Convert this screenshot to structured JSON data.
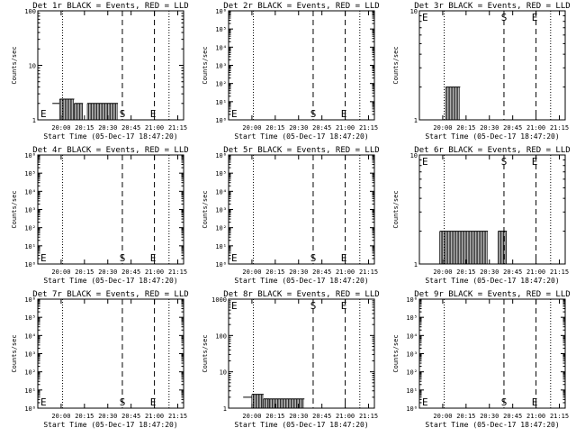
{
  "figure": {
    "background": "#ffffff",
    "ink": "#000000"
  },
  "chart_data": [
    {
      "type": "line",
      "title": "Det 1r BLACK = Events, RED = LLD",
      "xlabel": "Start Time (05-Dec-17 18:47:20)",
      "ylabel": "Counts/sec",
      "x_ticks": [
        "20:00",
        "20:15",
        "20:30",
        "20:45",
        "21:00",
        "21:15"
      ],
      "y_scale": "log",
      "ylim": [
        1,
        100
      ],
      "y_tick_values": [
        1,
        10,
        100
      ],
      "y_ticks": [
        "1",
        "10",
        "100"
      ],
      "markers": [
        {
          "label": "E",
          "position": "left"
        },
        {
          "label": "S",
          "position": "mid"
        },
        {
          "label": "E",
          "position": "right"
        }
      ],
      "series": [
        {
          "color": "#000000",
          "segments": [
            {
              "x0": 0.1,
              "x1": 0.15,
              "y": 2
            },
            {
              "x0": 0.15,
              "x1": 0.25,
              "y": 2.4,
              "dense": true
            },
            {
              "x0": 0.25,
              "x1": 0.31,
              "y": 2,
              "dense": true
            },
            {
              "x0": 0.31,
              "x1": 0.34,
              "y": 1
            },
            {
              "x0": 0.34,
              "x1": 0.55,
              "y": 2,
              "dense": true
            }
          ]
        }
      ]
    },
    {
      "type": "line",
      "title": "Det 2r BLACK = Events, RED = LLD",
      "xlabel": "Start Time (05-Dec-17 18:47:20)",
      "ylabel": "Counts/sec",
      "x_ticks": [
        "20:00",
        "20:15",
        "20:30",
        "20:45",
        "21:00",
        "21:15"
      ],
      "y_scale": "log",
      "ylim": [
        1,
        1000000
      ],
      "y_tick_values": [
        1,
        10,
        100,
        1000,
        10000,
        100000,
        1000000
      ],
      "y_ticks": [
        "10⁰",
        "10¹",
        "10²",
        "10³",
        "10⁴",
        "10⁵",
        "10⁶"
      ],
      "markers": [
        {
          "label": "E",
          "position": "left"
        },
        {
          "label": "S",
          "position": "mid"
        },
        {
          "label": "E",
          "position": "right"
        }
      ],
      "series": []
    },
    {
      "type": "line",
      "title": "Det 3r BLACK = Events, RED = LLD",
      "xlabel": "Start Time (05-Dec-17 18:47:20)",
      "ylabel": "Counts/sec",
      "x_ticks": [
        "20:00",
        "20:15",
        "20:30",
        "20:45",
        "21:00",
        "21:15"
      ],
      "y_scale": "log",
      "ylim": [
        1,
        10
      ],
      "y_tick_values": [
        1,
        10
      ],
      "y_ticks": [
        "1",
        "10"
      ],
      "markers": [
        {
          "label": "E",
          "position": "top-left"
        },
        {
          "label": "S",
          "position": "top-mid"
        },
        {
          "label": "E",
          "position": "top-right"
        }
      ],
      "series": [
        {
          "color": "#000000",
          "segments": [
            {
              "x0": 0.18,
              "x1": 0.28,
              "y": 2,
              "dense": true
            }
          ]
        }
      ]
    },
    {
      "type": "line",
      "title": "Det 4r BLACK = Events, RED = LLD",
      "xlabel": "Start Time (05-Dec-17 18:47:20)",
      "ylabel": "Counts/sec",
      "x_ticks": [
        "20:00",
        "20:15",
        "20:30",
        "20:45",
        "21:00",
        "21:15"
      ],
      "y_scale": "log",
      "ylim": [
        1,
        1000000
      ],
      "y_tick_values": [
        1,
        10,
        100,
        1000,
        10000,
        100000,
        1000000
      ],
      "y_ticks": [
        "10⁰",
        "10¹",
        "10²",
        "10³",
        "10⁴",
        "10⁵",
        "10⁶"
      ],
      "markers": [
        {
          "label": "E",
          "position": "left"
        },
        {
          "label": "S",
          "position": "mid"
        },
        {
          "label": "E",
          "position": "right"
        }
      ],
      "series": []
    },
    {
      "type": "line",
      "title": "Det 5r BLACK = Events, RED = LLD",
      "xlabel": "Start Time (05-Dec-17 18:47:20)",
      "ylabel": "Counts/sec",
      "x_ticks": [
        "20:00",
        "20:15",
        "20:30",
        "20:45",
        "21:00",
        "21:15"
      ],
      "y_scale": "log",
      "ylim": [
        1,
        1000000
      ],
      "y_tick_values": [
        1,
        10,
        100,
        1000,
        10000,
        100000,
        1000000
      ],
      "y_ticks": [
        "10⁰",
        "10¹",
        "10²",
        "10³",
        "10⁴",
        "10⁵",
        "10⁶"
      ],
      "markers": [
        {
          "label": "E",
          "position": "left"
        },
        {
          "label": "S",
          "position": "mid"
        },
        {
          "label": "E",
          "position": "right"
        }
      ],
      "series": []
    },
    {
      "type": "line",
      "title": "Det 6r BLACK = Events, RED = LLD",
      "xlabel": "Start Time (05-Dec-17 18:47:20)",
      "ylabel": "Counts/sec",
      "x_ticks": [
        "20:00",
        "20:15",
        "20:30",
        "20:45",
        "21:00",
        "21:15"
      ],
      "y_scale": "log",
      "ylim": [
        1,
        10
      ],
      "y_tick_values": [
        1,
        10
      ],
      "y_ticks": [
        "1",
        "10"
      ],
      "markers": [
        {
          "label": "E",
          "position": "top-left"
        },
        {
          "label": "S",
          "position": "top-mid"
        },
        {
          "label": "E",
          "position": "top-right"
        }
      ],
      "series": [
        {
          "color": "#000000",
          "segments": [
            {
              "x0": 0.14,
              "x1": 0.47,
              "y": 2,
              "dense": true
            },
            {
              "x0": 0.47,
              "x1": 0.54,
              "y": 1
            },
            {
              "x0": 0.54,
              "x1": 0.6,
              "y": 2,
              "dense": true
            }
          ]
        }
      ]
    },
    {
      "type": "line",
      "title": "Det 7r BLACK = Events, RED = LLD",
      "xlabel": "Start Time (05-Dec-17 18:47:20)",
      "ylabel": "Counts/sec",
      "x_ticks": [
        "20:00",
        "20:15",
        "20:30",
        "20:45",
        "21:00",
        "21:15"
      ],
      "y_scale": "log",
      "ylim": [
        1,
        1000000
      ],
      "y_tick_values": [
        1,
        10,
        100,
        1000,
        10000,
        100000,
        1000000
      ],
      "y_ticks": [
        "10⁰",
        "10¹",
        "10²",
        "10³",
        "10⁴",
        "10⁵",
        "10⁶"
      ],
      "markers": [
        {
          "label": "E",
          "position": "left"
        },
        {
          "label": "S",
          "position": "mid"
        },
        {
          "label": "E",
          "position": "right"
        }
      ],
      "series": []
    },
    {
      "type": "line",
      "title": "Det 8r BLACK = Events, RED = LLD",
      "xlabel": "Start Time (05-Dec-17 18:47:20)",
      "ylabel": "Counts/sec",
      "x_ticks": [
        "20:00",
        "20:15",
        "20:30",
        "20:45",
        "21:00",
        "21:15"
      ],
      "y_scale": "log",
      "ylim": [
        1,
        1000
      ],
      "y_tick_values": [
        1,
        10,
        100,
        1000
      ],
      "y_ticks": [
        "1",
        "10",
        "100",
        "1000"
      ],
      "markers": [
        {
          "label": "E",
          "position": "top-left"
        },
        {
          "label": "S",
          "position": "top-mid"
        },
        {
          "label": "E",
          "position": "top-right"
        }
      ],
      "series": [
        {
          "color": "#000000",
          "segments": [
            {
              "x0": 0.1,
              "x1": 0.16,
              "y": 2
            },
            {
              "x0": 0.16,
              "x1": 0.24,
              "y": 2.4,
              "dense": true
            },
            {
              "x0": 0.24,
              "x1": 0.28,
              "y": 1.8,
              "dense": true
            },
            {
              "x0": 0.28,
              "x1": 0.52,
              "y": 1.8,
              "dense": true
            }
          ]
        }
      ]
    },
    {
      "type": "line",
      "title": "Det 9r BLACK = Events, RED = LLD",
      "xlabel": "Start Time (05-Dec-17 18:47:20)",
      "ylabel": "Counts/sec",
      "x_ticks": [
        "20:00",
        "20:15",
        "20:30",
        "20:45",
        "21:00",
        "21:15"
      ],
      "y_scale": "log",
      "ylim": [
        1,
        1000000
      ],
      "y_tick_values": [
        1,
        10,
        100,
        1000,
        10000,
        100000,
        1000000
      ],
      "y_ticks": [
        "10⁰",
        "10¹",
        "10²",
        "10³",
        "10⁴",
        "10⁵",
        "10⁶"
      ],
      "markers": [
        {
          "label": "E",
          "position": "left"
        },
        {
          "label": "S",
          "position": "mid"
        },
        {
          "label": "E",
          "position": "right"
        }
      ],
      "series": []
    }
  ]
}
